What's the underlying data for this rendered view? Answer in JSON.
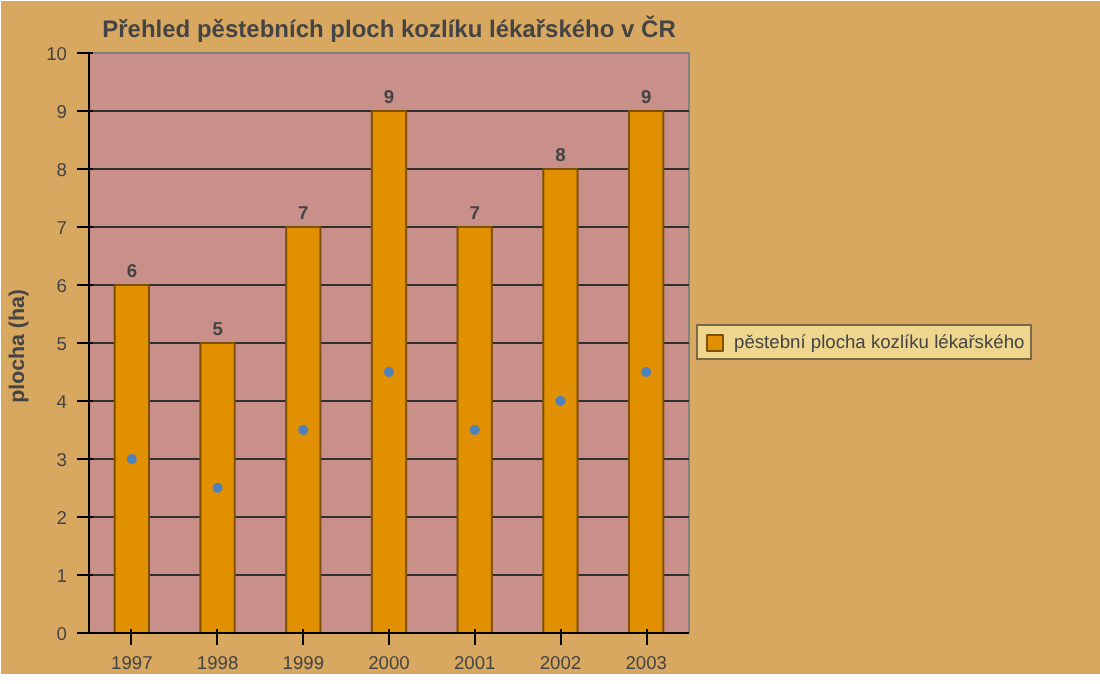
{
  "chart_data": {
    "type": "bar",
    "title": "Přehled pěstebních ploch kozlíku lékařského v ČR",
    "ylabel": "plocha  (ha)",
    "categories": [
      "1997",
      "1998",
      "1999",
      "2000",
      "2001",
      "2002",
      "2003"
    ],
    "series": [
      {
        "name": "pěstební plocha kozlíku lékařského",
        "color": "#e09000",
        "values": [
          6,
          5,
          7,
          9,
          7,
          8,
          9
        ],
        "value_labels": [
          "6",
          "5",
          "7",
          "9",
          "7",
          "8",
          "9"
        ]
      },
      {
        "type": "scatter",
        "color": "#4f81bd",
        "values": [
          3,
          2.5,
          3.5,
          4.5,
          3.5,
          4,
          4.5
        ]
      }
    ],
    "ylim": [
      0,
      10
    ],
    "yticks": [
      0,
      1,
      2,
      3,
      4,
      5,
      6,
      7,
      8,
      9,
      10
    ],
    "grid": "y",
    "legend": "right",
    "marker": "circle"
  }
}
